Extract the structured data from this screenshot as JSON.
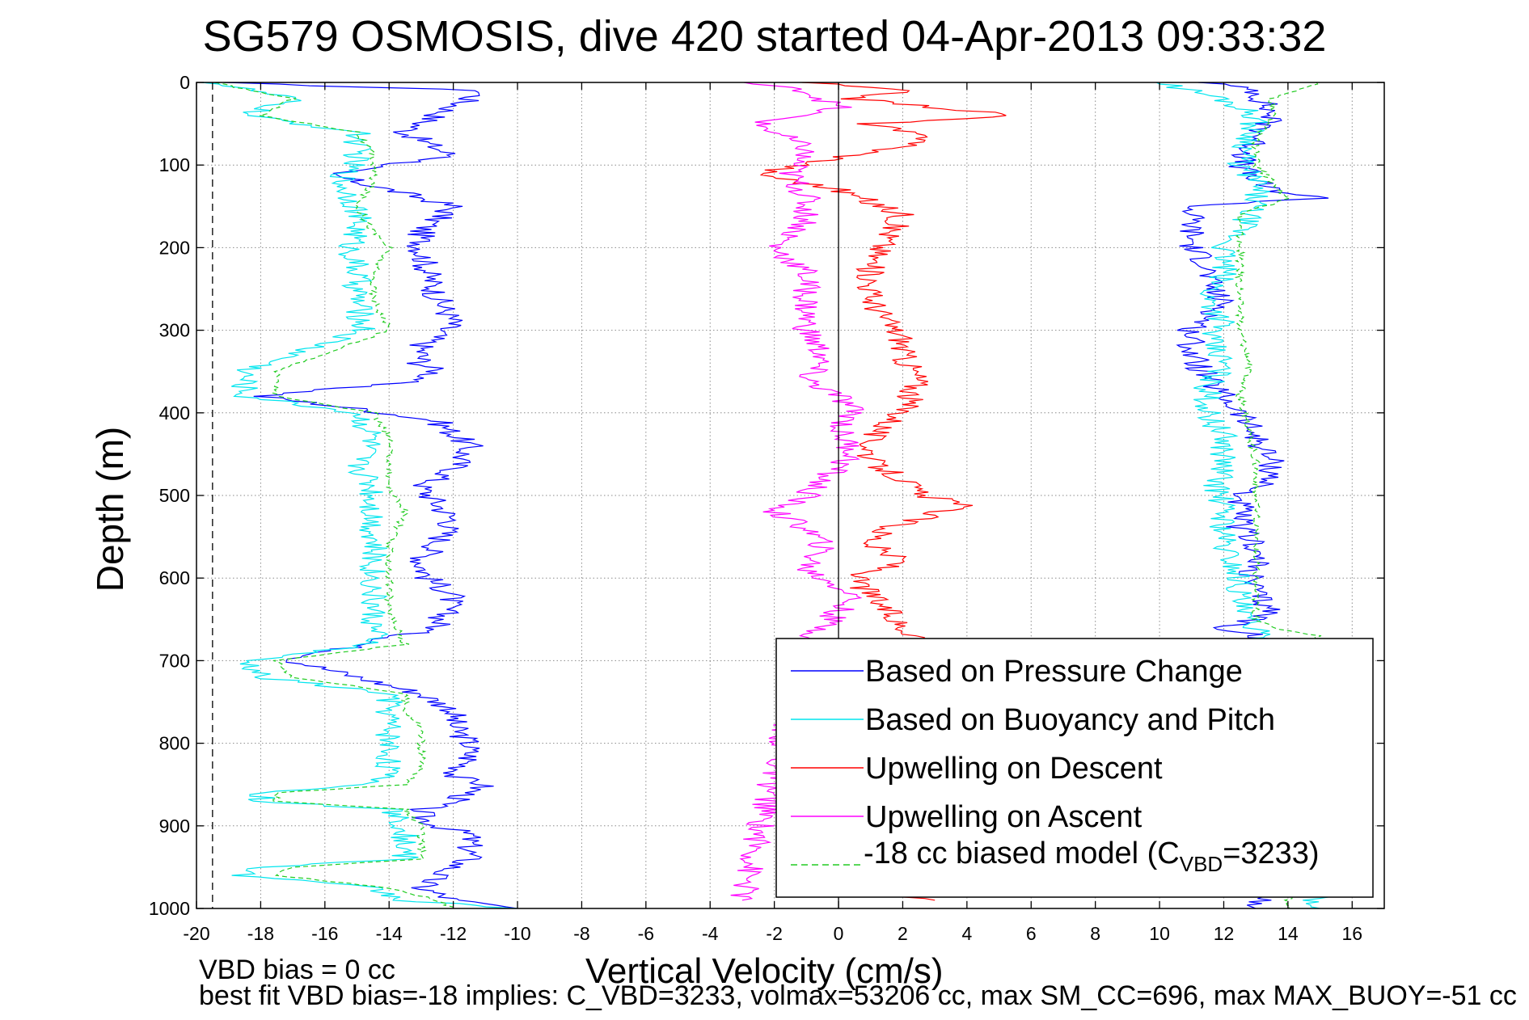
{
  "chart_data": {
    "type": "line",
    "title": "SG579 OSMOSIS, dive 420 started 04-Apr-2013 09:33:32",
    "xlabel": "Vertical Velocity (cm/s)",
    "ylabel": "Depth (m)",
    "xlim": [
      -20,
      17
    ],
    "ylim": [
      0,
      1000
    ],
    "y_reversed": true,
    "grid": true,
    "legend_position": "bottom-right",
    "xticks": [
      "-20",
      "-18",
      "-16",
      "-14",
      "-12",
      "-10",
      "-8",
      "-6",
      "-4",
      "-2",
      "0",
      "2",
      "4",
      "6",
      "8",
      "10",
      "12",
      "14",
      "16"
    ],
    "yticks": [
      "0",
      "100",
      "200",
      "300",
      "400",
      "500",
      "600",
      "700",
      "800",
      "900",
      "1000"
    ],
    "reference_lines": [
      {
        "orientation": "vertical",
        "x": 0,
        "style": "solid",
        "color": "#000000"
      },
      {
        "orientation": "vertical",
        "x": -19.5,
        "style": "dashed",
        "color": "#000000"
      }
    ],
    "series": [
      {
        "name": "Based on Pressure Change",
        "color": "#0000ff",
        "style": "solid",
        "segments": [
          {
            "x": [
              -19.5,
              -11,
              -12,
              -13.5,
              -12,
              -16,
              -14,
              -12,
              -13,
              -13,
              -12.8,
              -12.5,
              -12,
              -13,
              -13,
              -12.5,
              -13,
              -18,
              -15,
              -12.5,
              -11.5,
              -12,
              -13,
              -12.5,
              -12,
              -12.5,
              -13,
              -12.8,
              -12,
              -12.5,
              -17,
              -15,
              -13,
              -12,
              -12,
              -11.5,
              -11.5,
              -12,
              -11,
              -11.5,
              -12,
              -13,
              -13,
              -12.5,
              -11.5,
              -11.5,
              -11.5,
              -12.5,
              -13,
              -12,
              -10
            ],
            "y": [
              0,
              10,
              30,
              60,
              90,
              110,
              130,
              150,
              180,
              200,
              230,
              260,
              290,
              320,
              340,
              350,
              360,
              380,
              395,
              410,
              440,
              470,
              490,
              510,
              530,
              560,
              580,
              600,
              620,
              660,
              700,
              720,
              740,
              760,
              780,
              800,
              820,
              840,
              850,
              860,
              870,
              880,
              890,
              900,
              910,
              920,
              940,
              960,
              975,
              990,
              1000
            ]
          },
          {
            "x": [
              11.5,
              13,
              13.5,
              13,
              12.5,
              13,
              13.5,
              15,
              11,
              11,
              11,
              11,
              11.5,
              11.5,
              12,
              11,
              11,
              11.5,
              12,
              12.5,
              13,
              13.5,
              13.5,
              12.5,
              12.5,
              12.5,
              13,
              13,
              13,
              12.8,
              13,
              13.5,
              13,
              12,
              13,
              14,
              14.5,
              14,
              13
            ],
            "y": [
              0,
              10,
              40,
              70,
              100,
              120,
              130,
              140,
              150,
              160,
              180,
              200,
              220,
              240,
              270,
              300,
              330,
              360,
              380,
              400,
              430,
              460,
              480,
              500,
              520,
              540,
              560,
              570,
              580,
              600,
              620,
              640,
              650,
              660,
              670,
              680,
              700,
              750,
              1000
            ]
          }
        ]
      },
      {
        "name": "Based on Buoyancy and Pitch",
        "color": "#00e5ee",
        "style": "solid",
        "segments": [
          {
            "x": [
              -19.5,
              -17,
              -18.5,
              -15,
              -15,
              -15.5,
              -15,
              -15,
              -15.2,
              -15,
              -15,
              -14.8,
              -18.5,
              -18.5,
              -15,
              -14.5,
              -15,
              -14.5,
              -14.5,
              -14.5,
              -14.5,
              -14.5,
              -14.5,
              -18.5,
              -18,
              -14,
              -14,
              -14,
              -14,
              -14,
              -14.5,
              -18,
              -18,
              -14,
              -13.5,
              -13.5,
              -13.5,
              -18,
              -18.5,
              -14.5,
              -13.5,
              -10
            ],
            "y": [
              0,
              20,
              40,
              60,
              90,
              120,
              150,
              180,
              200,
              230,
              260,
              300,
              350,
              380,
              400,
              430,
              460,
              490,
              520,
              560,
              600,
              640,
              680,
              700,
              720,
              740,
              760,
              780,
              800,
              830,
              850,
              860,
              870,
              880,
              900,
              920,
              940,
              950,
              960,
              975,
              990,
              1000
            ]
          },
          {
            "x": [
              10,
              12,
              13,
              12.8,
              12.5,
              13,
              13,
              12.8,
              12.5,
              12,
              12,
              11.5,
              12,
              11.5,
              12,
              11.5,
              11.5,
              12,
              12,
              11.8,
              12,
              12,
              12.5,
              12.5,
              12.5,
              13,
              13,
              13,
              14,
              15
            ],
            "y": [
              0,
              20,
              40,
              70,
              100,
              120,
              140,
              160,
              180,
              200,
              230,
              260,
              290,
              310,
              340,
              370,
              400,
              430,
              460,
              490,
              520,
              560,
              600,
              620,
              640,
              660,
              680,
              700,
              900,
              1000
            ]
          }
        ]
      },
      {
        "name": "Upwelling on Descent",
        "color": "#ff0000",
        "style": "solid",
        "segments": [
          {
            "x": [
              -1,
              2,
              0.5,
              5.5,
              1,
              3,
              -2.5,
              0,
              2,
              1.5,
              1,
              1,
              1.5,
              2,
              2,
              2.5,
              2,
              1,
              1,
              2,
              2.5,
              4,
              1.5,
              1,
              2,
              0.5,
              1,
              1.5,
              2,
              3,
              2,
              1,
              0.5,
              3
            ],
            "y": [
              0,
              10,
              20,
              40,
              50,
              70,
              110,
              130,
              160,
              190,
              220,
              260,
              290,
              310,
              330,
              360,
              400,
              430,
              460,
              480,
              500,
              510,
              540,
              560,
              580,
              600,
              620,
              640,
              660,
              680,
              700,
              950,
              980,
              990
            ]
          }
        ]
      },
      {
        "name": "Upwelling on Ascent",
        "color": "#ff00ff",
        "style": "solid",
        "segments": [
          {
            "x": [
              -3,
              -1,
              0,
              -2.5,
              -1,
              -1.5,
              -1,
              -1,
              -2,
              -1,
              -1,
              -1,
              -1,
              -0.5,
              -1,
              0,
              0.5,
              0,
              0.5,
              -0.5,
              -1,
              -2,
              -1,
              -0.5,
              -1,
              0.5,
              0,
              -0.5,
              -1,
              -3
            ],
            "y": [
              0,
              10,
              30,
              50,
              80,
              110,
              140,
              170,
              200,
              230,
              260,
              280,
              300,
              330,
              360,
              380,
              400,
              420,
              450,
              480,
              500,
              520,
              540,
              560,
              590,
              620,
              640,
              660,
              680,
              990
            ]
          }
        ]
      },
      {
        "name": "-18 cc biased model (C_VBD=3233)",
        "color": "#22cc22",
        "style": "dashed",
        "segments": [
          {
            "x": [
              -19.5,
              -17,
              -18,
              -15,
              -14.5,
              -14.5,
              -15,
              -14.5,
              -14,
              -14.5,
              -14.5,
              -14,
              -17.5,
              -17.5,
              -14.5,
              -14,
              -14,
              -14,
              -13.5,
              -14,
              -14,
              -14,
              -13.5,
              -17.5,
              -17,
              -13.5,
              -13.5,
              -13,
              -13,
              -13,
              -13.5,
              -17.5,
              -17.5,
              -13.5,
              -13,
              -13,
              -13,
              -17,
              -17.5,
              -14,
              -12.5,
              -12
            ],
            "y": [
              0,
              20,
              40,
              60,
              90,
              120,
              150,
              180,
              200,
              230,
              260,
              300,
              350,
              380,
              400,
              430,
              460,
              490,
              520,
              560,
              600,
              640,
              680,
              700,
              720,
              740,
              760,
              780,
              800,
              830,
              850,
              860,
              870,
              880,
              900,
              920,
              940,
              950,
              960,
              975,
              990,
              1000
            ]
          },
          {
            "x": [
              15,
              13.5,
              13.5,
              13,
              13,
              13.5,
              14,
              12.5,
              12.5,
              12.5,
              12.5,
              12.5,
              12.8,
              12.5,
              12.8,
              13,
              13,
              13,
              13,
              13,
              13,
              13.5,
              15,
              14.5,
              14
            ],
            "y": [
              0,
              20,
              40,
              70,
              100,
              120,
              140,
              160,
              180,
              220,
              260,
              300,
              340,
              380,
              420,
              460,
              500,
              540,
              580,
              620,
              650,
              660,
              670,
              700,
              1000
            ]
          }
        ]
      }
    ]
  },
  "legend": {
    "items": [
      {
        "label": "Based on Pressure Change",
        "color": "#0000ff",
        "dash": ""
      },
      {
        "label": "Based on Buoyancy and Pitch",
        "color": "#00e5ee",
        "dash": ""
      },
      {
        "label": "Upwelling on Descent",
        "color": "#ff0000",
        "dash": ""
      },
      {
        "label": "Upwelling on Ascent",
        "color": "#ff00ff",
        "dash": ""
      }
    ],
    "model_item": {
      "prefix": "-18 cc biased model (C",
      "subscript": "VBD",
      "suffix": "=3233)",
      "color": "#22cc22",
      "dash": "8,5"
    }
  },
  "footer": {
    "line1": "VBD bias = 0 cc",
    "line2": "best fit VBD bias=-18 implies: C_VBD=3233, volmax=53206 cc, max SM_CC=696, max MAX_BUOY=-51 cc"
  }
}
